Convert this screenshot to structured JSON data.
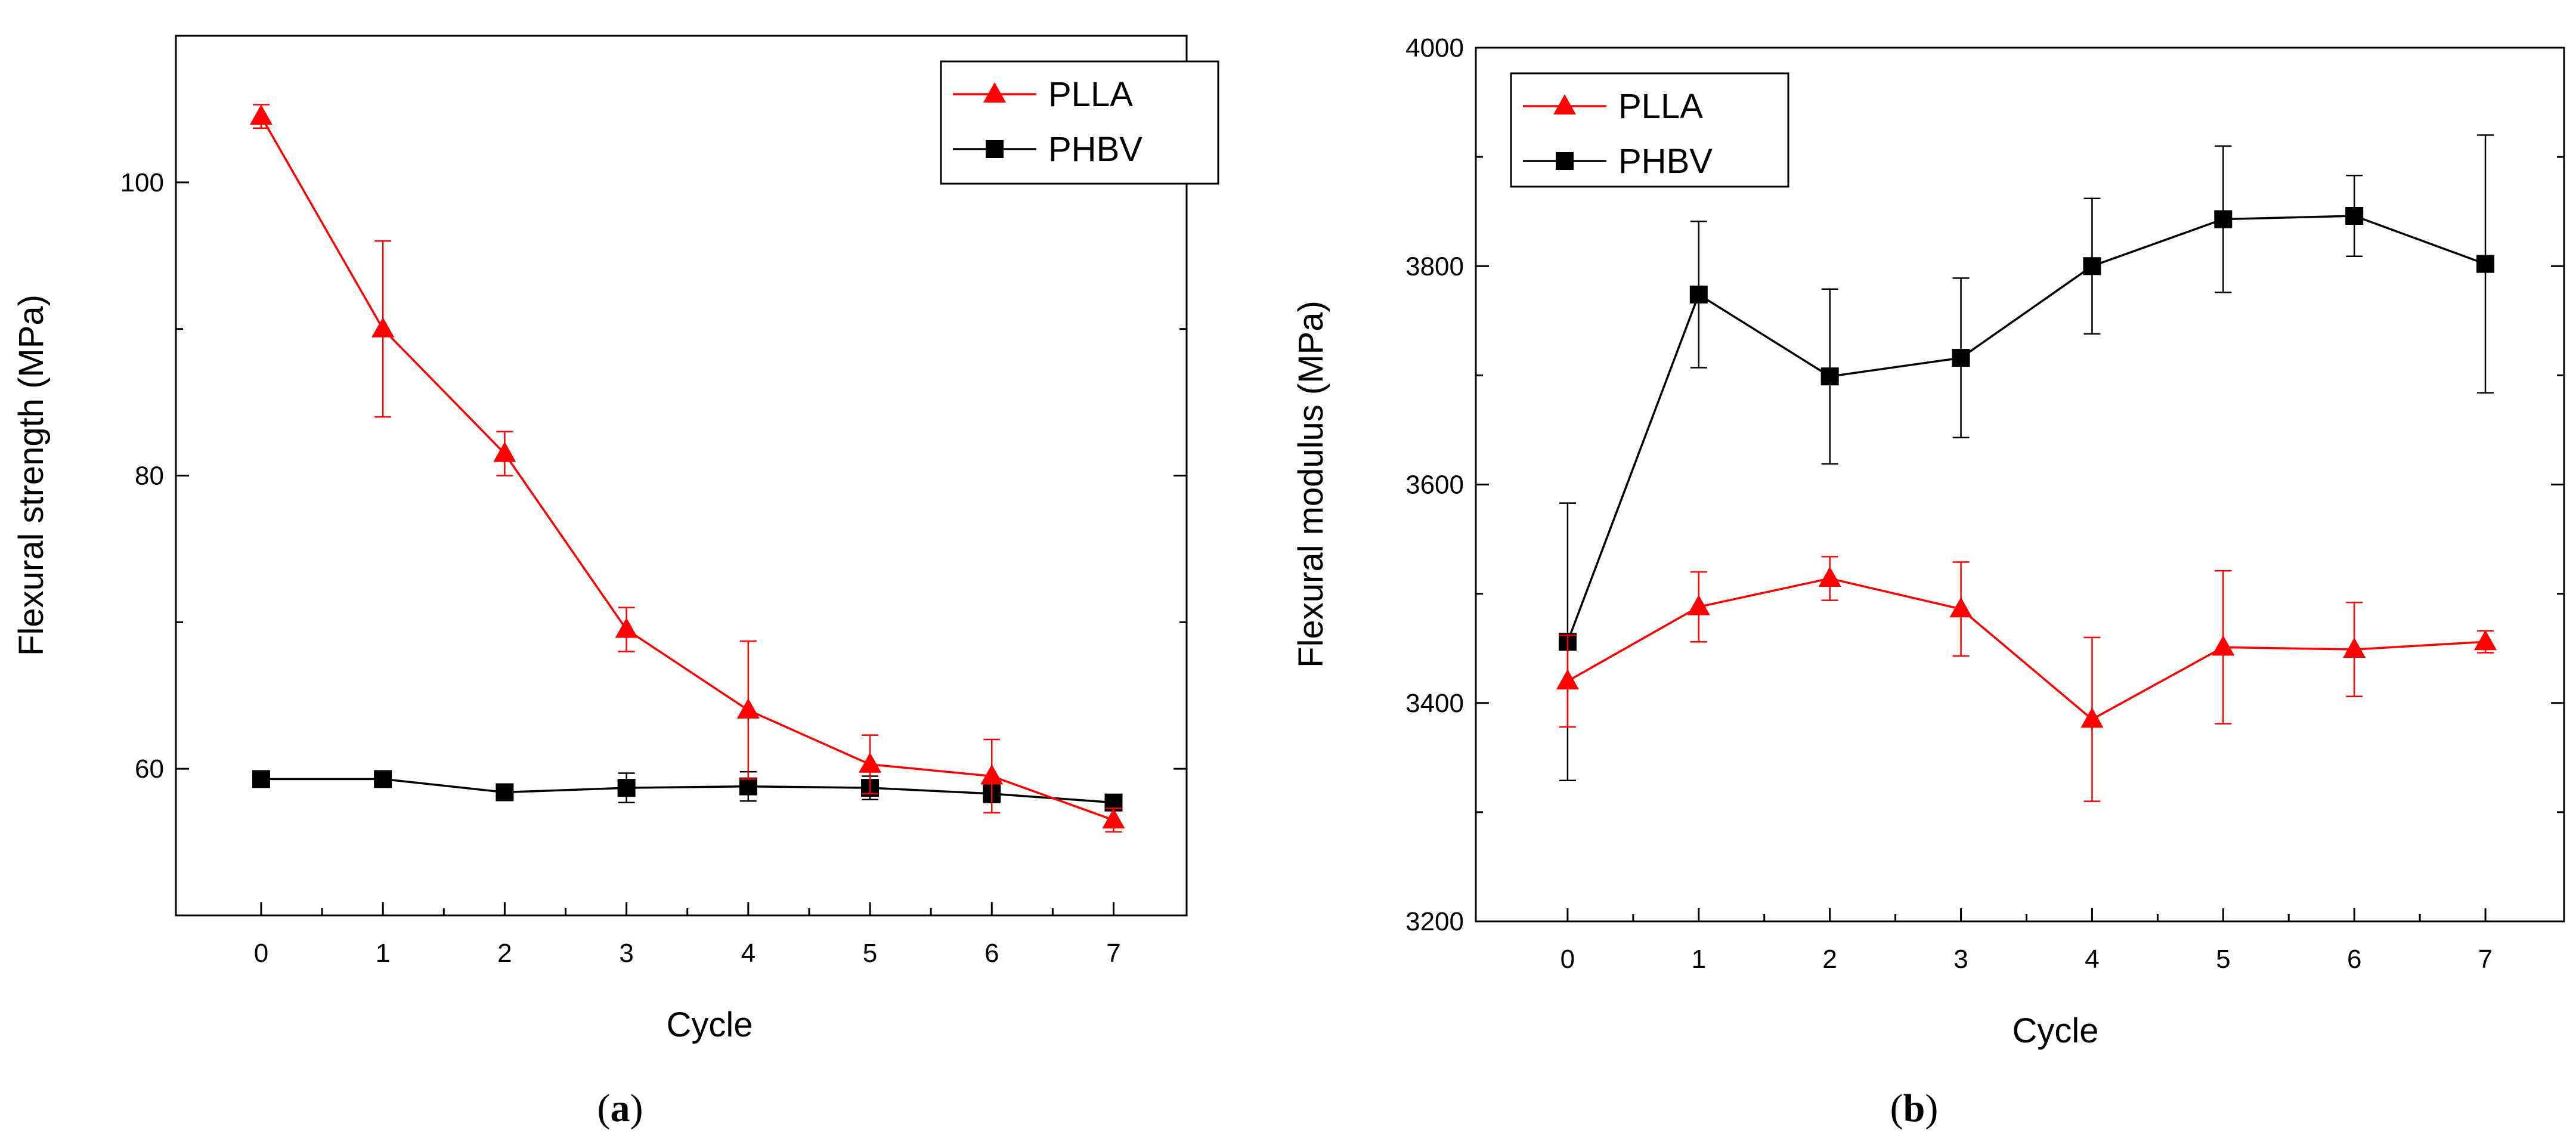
{
  "chart_data": [
    {
      "type": "line",
      "caption": "a",
      "xlabel": "Cycle",
      "ylabel": "Flexural strength (MPa)",
      "xlim": [
        -0.7,
        7.6
      ],
      "ylim": [
        50,
        110
      ],
      "xticks": [
        "0",
        "1",
        "2",
        "3",
        "4",
        "5",
        "6",
        "7"
      ],
      "yticks": [
        "60",
        "80",
        "100"
      ],
      "ytick_values": [
        60,
        80,
        100
      ],
      "legend_position": "top-right",
      "x": [
        0,
        1,
        2,
        3,
        4,
        5,
        6,
        7
      ],
      "series": [
        {
          "name": "PLLA",
          "color": "#ff0000",
          "marker": "triangle",
          "values": [
            104.5,
            90.0,
            81.5,
            69.5,
            64.0,
            60.3,
            59.5,
            56.5
          ],
          "errors": [
            0.8,
            6.0,
            1.5,
            1.5,
            4.7,
            2.0,
            2.5,
            0.8
          ]
        },
        {
          "name": "PHBV",
          "color": "#000000",
          "marker": "square",
          "values": [
            59.3,
            59.3,
            58.4,
            58.7,
            58.8,
            58.7,
            58.3,
            57.7
          ],
          "errors": [
            0.5,
            0.4,
            0.5,
            1.0,
            1.0,
            0.8,
            0.6,
            0.4
          ]
        }
      ]
    },
    {
      "type": "line",
      "caption": "b",
      "xlabel": "Cycle",
      "ylabel": "Flexural modulus (MPa)",
      "xlim": [
        -0.7,
        7.6
      ],
      "ylim": [
        3200,
        4000
      ],
      "xticks": [
        "0",
        "1",
        "2",
        "3",
        "4",
        "5",
        "6",
        "7"
      ],
      "yticks": [
        "3200",
        "3400",
        "3600",
        "3800",
        "4000"
      ],
      "ytick_values": [
        3200,
        3400,
        3600,
        3800,
        4000
      ],
      "legend_position": "top-left",
      "x": [
        0,
        1,
        2,
        3,
        4,
        5,
        6,
        7
      ],
      "series": [
        {
          "name": "PLLA",
          "color": "#ff0000",
          "marker": "triangle",
          "values": [
            3420,
            3488,
            3514,
            3486,
            3385,
            3451,
            3449,
            3456
          ],
          "errors": [
            42,
            32,
            20,
            43,
            75,
            70,
            43,
            10
          ]
        },
        {
          "name": "PHBV",
          "color": "#000000",
          "marker": "square",
          "values": [
            3456,
            3774,
            3699,
            3716,
            3800,
            3843,
            3846,
            3802
          ],
          "errors": [
            127,
            67,
            80,
            73,
            62,
            67,
            37,
            118
          ]
        }
      ]
    }
  ]
}
